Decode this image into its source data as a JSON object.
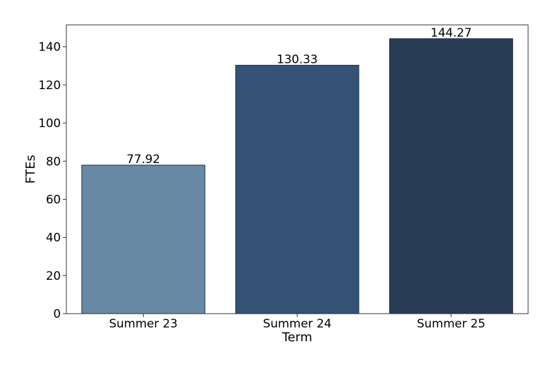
{
  "chart_data": {
    "type": "bar",
    "title": "",
    "xlabel": "Term",
    "ylabel": "FTEs",
    "categories": [
      "Summer 23",
      "Summer 24",
      "Summer 25"
    ],
    "values": [
      77.92,
      130.33,
      144.27
    ],
    "data_labels": [
      "77.92",
      "130.33",
      "144.27"
    ],
    "bar_colors": [
      "#6789a5",
      "#345276",
      "#283c56"
    ],
    "bar_edge_color": "#1f2f44",
    "ylim": [
      0,
      151.5
    ],
    "yticks": [
      0,
      20,
      40,
      60,
      80,
      100,
      120,
      140
    ],
    "ytick_labels": [
      "0",
      "20",
      "40",
      "60",
      "80",
      "100",
      "120",
      "140"
    ],
    "grid": false,
    "legend": "none"
  }
}
